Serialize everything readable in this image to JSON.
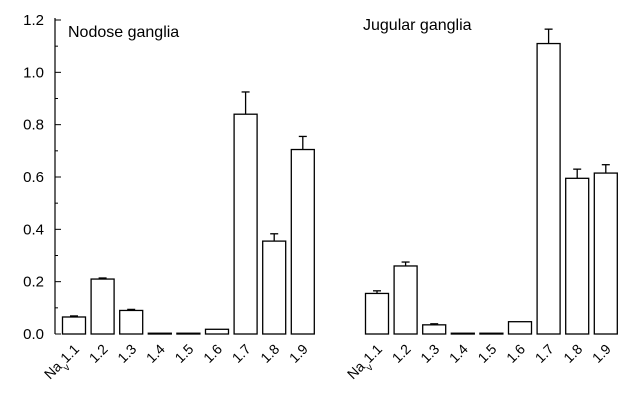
{
  "chart_data": [
    {
      "type": "bar",
      "title": "Nodose ganglia",
      "categories": [
        "Nav1.1",
        "1.2",
        "1.3",
        "1.4",
        "1.5",
        "1.6",
        "1.7",
        "1.8",
        "1.9"
      ],
      "values": [
        0.065,
        0.21,
        0.09,
        0.003,
        0.003,
        0.018,
        0.84,
        0.355,
        0.705
      ],
      "errors": [
        0.004,
        0.004,
        0.004,
        0.001,
        0.001,
        0.003,
        0.085,
        0.028,
        0.05
      ],
      "ylim": [
        0,
        1.2
      ],
      "yticks": [
        "0.0",
        "0.2",
        "0.4",
        "0.6",
        "0.8",
        "1.0",
        "1.2"
      ]
    },
    {
      "type": "bar",
      "title": "Jugular ganglia",
      "categories": [
        "Nav1.1",
        "1.2",
        "1.3",
        "1.4",
        "1.5",
        "1.6",
        "1.7",
        "1.8",
        "1.9"
      ],
      "values": [
        0.155,
        0.26,
        0.035,
        0.003,
        0.003,
        0.047,
        1.11,
        0.595,
        0.615
      ],
      "errors": [
        0.01,
        0.015,
        0.004,
        0.001,
        0.001,
        0.003,
        0.055,
        0.035,
        0.032
      ],
      "ylim": [
        0,
        1.2
      ]
    }
  ]
}
